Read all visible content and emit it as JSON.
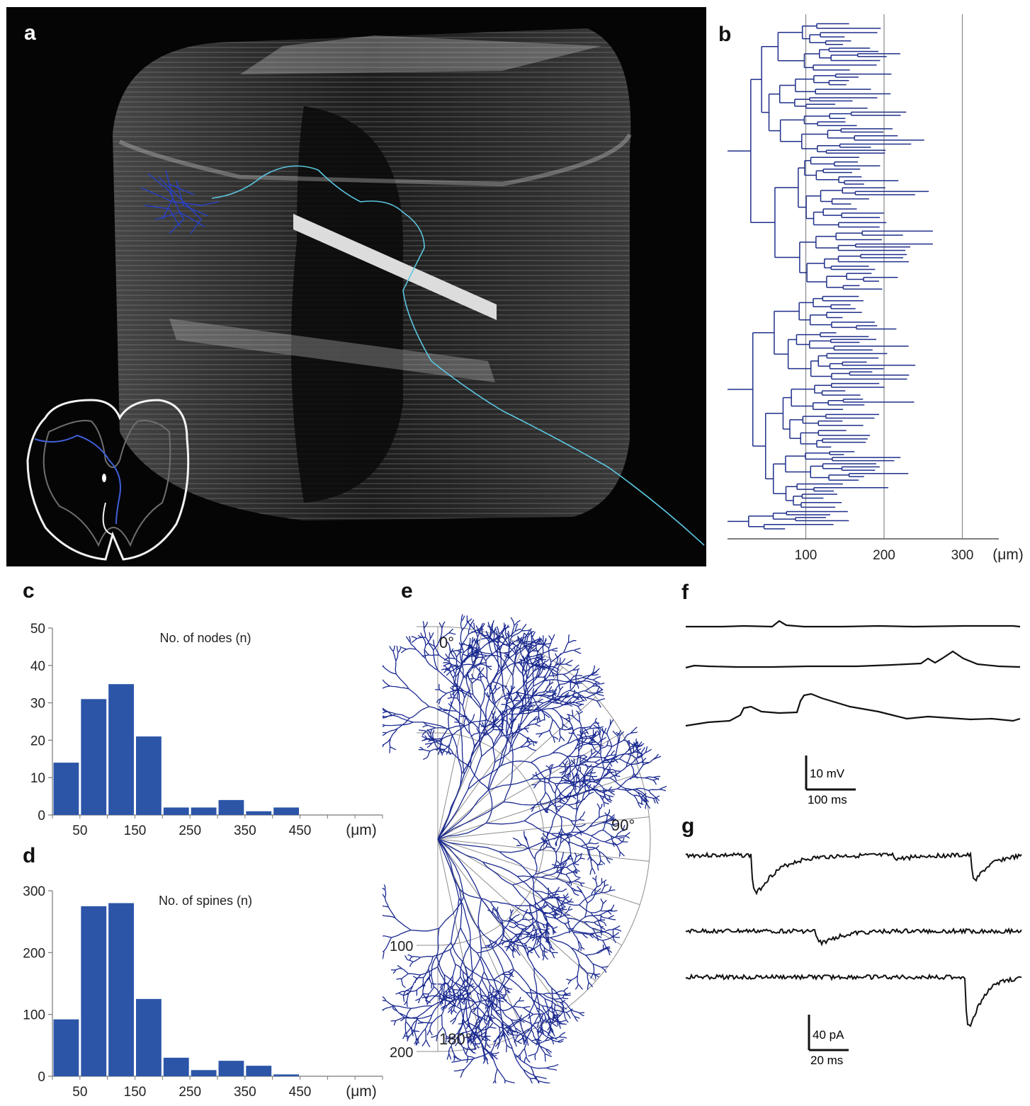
{
  "panels": {
    "a": {
      "label": "a"
    },
    "b": {
      "label": "b"
    },
    "c": {
      "label": "c"
    },
    "d": {
      "label": "d"
    },
    "e": {
      "label": "e"
    },
    "f": {
      "label": "f"
    },
    "g": {
      "label": "g"
    }
  },
  "colors": {
    "bar": "#2c55a8",
    "dendrogram": "#1f2f8a",
    "trace": "#111111",
    "neuron_axon": "#5bc6e0",
    "neuron_dendrite": "#2740c8",
    "polar_tree": "#1b2a90"
  },
  "chart_data": [
    {
      "id": "b",
      "type": "dendrogram",
      "x_ticks": [
        "100",
        "200",
        "300"
      ],
      "x_tick_values": [
        100,
        200,
        300
      ],
      "x_unit": "(μm)",
      "xlim": [
        0,
        340
      ]
    },
    {
      "id": "c",
      "type": "bar",
      "title": "No. of nodes (n)",
      "bin_centers": [
        25,
        75,
        125,
        175,
        225,
        275,
        325,
        375,
        425,
        475,
        525,
        575
      ],
      "values": [
        14,
        31,
        35,
        21,
        2,
        2,
        4,
        1,
        2,
        0,
        0,
        0
      ],
      "x_ticks": [
        "50",
        "150",
        "250",
        "350",
        "450"
      ],
      "x_tick_values": [
        50,
        150,
        250,
        350,
        450
      ],
      "x_unit": "(μm)",
      "y_ticks": [
        "0",
        "10",
        "20",
        "30",
        "40",
        "50"
      ],
      "y_tick_values": [
        0,
        10,
        20,
        30,
        40,
        50
      ],
      "ylim": [
        0,
        50
      ]
    },
    {
      "id": "d",
      "type": "bar",
      "title": "No. of spines (n)",
      "bin_centers": [
        25,
        75,
        125,
        175,
        225,
        275,
        325,
        375,
        425,
        475,
        525,
        575
      ],
      "values": [
        92,
        275,
        280,
        125,
        30,
        10,
        25,
        17,
        3,
        0,
        0,
        0
      ],
      "x_ticks": [
        "50",
        "150",
        "250",
        "350",
        "450"
      ],
      "x_tick_values": [
        50,
        150,
        250,
        350,
        450
      ],
      "x_unit": "(μm)",
      "y_ticks": [
        "0",
        "100",
        "200",
        "300"
      ],
      "y_tick_values": [
        0,
        100,
        200,
        300
      ],
      "ylim": [
        0,
        300
      ]
    },
    {
      "id": "e",
      "type": "polar",
      "angle_labels": [
        "0°",
        "90°",
        "180°"
      ],
      "radius_labels": [
        "100",
        "200"
      ]
    }
  ],
  "scale_bars": {
    "f": {
      "vertical": "10 mV",
      "horizontal": "100 ms"
    },
    "g": {
      "vertical": "40 pA",
      "horizontal": "20 ms"
    }
  }
}
